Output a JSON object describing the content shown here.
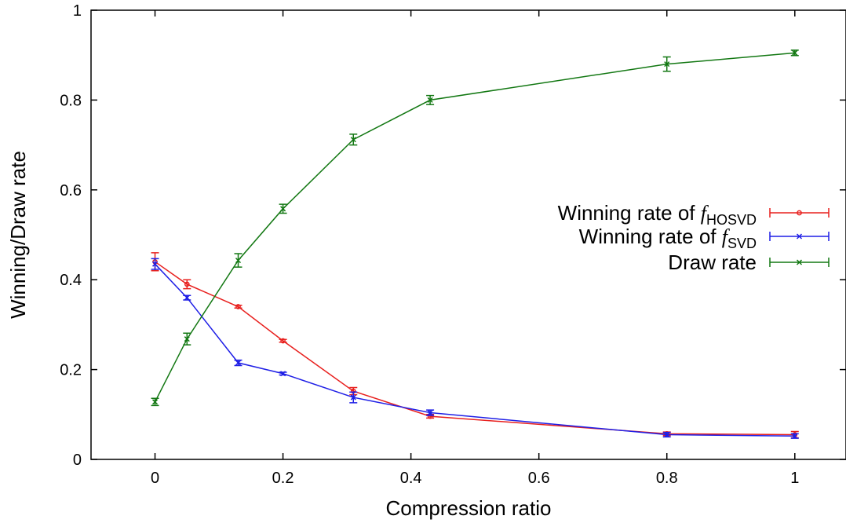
{
  "chart_data": {
    "type": "line",
    "xlabel": "Compression ratio",
    "ylabel": "Winning/Draw rate",
    "xlim": [
      -0.1,
      1.08
    ],
    "ylim": [
      0,
      1
    ],
    "x_ticks": [
      0,
      0.2,
      0.4,
      0.6,
      0.8,
      1
    ],
    "x_tick_labels": [
      "0",
      "0.2",
      "0.4",
      "0.6",
      "0.8",
      "1"
    ],
    "y_ticks": [
      0,
      0.2,
      0.4,
      0.6,
      0.8,
      1
    ],
    "y_tick_labels": [
      "0",
      "0.2",
      "0.4",
      "0.6",
      "0.8",
      "1"
    ],
    "grid": false,
    "legend_position": "right",
    "series": [
      {
        "name_prefix": "Winning rate of ",
        "name_italic": "f",
        "name_sub": "HOSVD",
        "color": "#e8201e",
        "marker": "circle",
        "x": [
          0,
          0.05,
          0.13,
          0.2,
          0.31,
          0.43,
          0.8,
          1
        ],
        "y": [
          0.44,
          0.39,
          0.34,
          0.264,
          0.152,
          0.096,
          0.057,
          0.055
        ],
        "err": [
          0.02,
          0.01,
          0.003,
          0.003,
          0.008,
          0.004,
          0.004,
          0.007
        ]
      },
      {
        "name_prefix": "Winning rate of ",
        "name_italic": "f",
        "name_sub": "SVD",
        "color": "#1f1fe6",
        "marker": "x",
        "x": [
          0,
          0.05,
          0.13,
          0.2,
          0.31,
          0.43,
          0.8,
          1
        ],
        "y": [
          0.435,
          0.36,
          0.215,
          0.191,
          0.138,
          0.104,
          0.055,
          0.052
        ],
        "err": [
          0.012,
          0.005,
          0.006,
          0.003,
          0.012,
          0.006,
          0.005,
          0.005
        ]
      },
      {
        "name": "Draw rate",
        "color": "#137813",
        "marker": "x",
        "x": [
          0,
          0.05,
          0.13,
          0.2,
          0.31,
          0.43,
          0.8,
          1
        ],
        "y": [
          0.128,
          0.268,
          0.443,
          0.558,
          0.712,
          0.8,
          0.88,
          0.905
        ],
        "err": [
          0.008,
          0.013,
          0.015,
          0.01,
          0.012,
          0.01,
          0.016,
          0.006
        ]
      }
    ]
  }
}
